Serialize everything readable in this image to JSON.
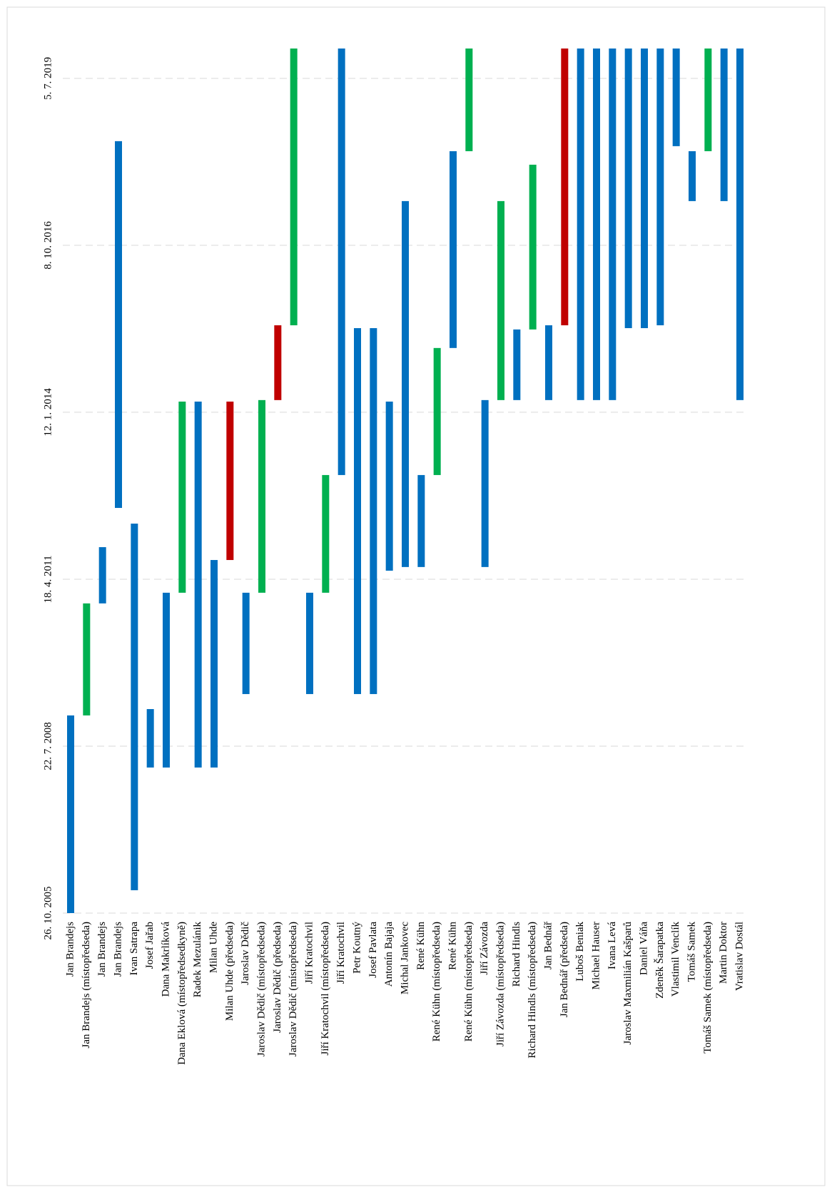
{
  "chart_data": {
    "type": "floating-bar",
    "categories": [
      "Jan Brandejs",
      "Jan Brandejs (místopředseda)",
      "Jan Brandejs",
      "Jan Brandejs",
      "Ivan Satrapa",
      "Josef Jařab",
      "Dana Makrlíková",
      "Dana Eklová (místopředsedkyně)",
      "Radek Mezulánik",
      "Milan Uhde",
      "Milan Uhde (předseda)",
      "Jaroslav Dědič",
      "Jaroslav Dědič (místopředseda)",
      "Jaroslav Dědič (předseda)",
      "Jaroslav Dědič (místopředseda)",
      "Jiří Kratochvil",
      "Jiří Kratochvil (místopředseda)",
      "Jiří Kratochvil",
      "Petr Koutný",
      "Josef Pavlata",
      "Antonín Bajaja",
      "Michal Jankovec",
      "René Kühn",
      "René Kühn (místopředseda)",
      "René Kühn",
      "René Kühn (místopředseda)",
      "Jiří Závozda",
      "Jiří Závozda (místopředseda)",
      "Richard Hindls",
      "Richard Hindls (místopředseda)",
      "Jan Bednář",
      "Jan Bednář (předseda)",
      "Luboš Beniak",
      "Michael Hauser",
      "Ivana Levá",
      "Jaroslav Maxmilián Kašparů",
      "Daniel Váňa",
      "Zdeněk Šarapatka",
      "Vlastimil Venclík",
      "Tomáš Samek",
      "Tomáš Samek (místopředseda)",
      "Martin Doktor",
      "Vratislav Dostál"
    ],
    "starts": [
      38651,
      39835,
      40506,
      41078,
      38788,
      39523,
      39523,
      40570,
      39523,
      39523,
      40766,
      39963,
      40570,
      41724,
      42172,
      39963,
      40570,
      41275,
      39963,
      39963,
      40702,
      40724,
      40724,
      41275,
      42036,
      43215,
      40724,
      41724,
      41724,
      42147,
      41724,
      42172,
      41724,
      41724,
      41724,
      42155,
      42155,
      42172,
      43245,
      42916,
      43215,
      42916,
      41724
    ],
    "ends": [
      39835,
      40506,
      40843,
      43275,
      40984,
      39873,
      40570,
      41715,
      41715,
      40766,
      41715,
      40570,
      41724,
      42172,
      43830,
      40570,
      41275,
      43830,
      42155,
      42155,
      41715,
      42916,
      41275,
      42036,
      43215,
      43830,
      41724,
      42916,
      42147,
      43134,
      42172,
      43830,
      43830,
      43830,
      43830,
      43830,
      43830,
      43830,
      43830,
      43215,
      43830,
      43830,
      43830
    ],
    "colors": [
      "#0070c0",
      "#00b050",
      "#0070c0",
      "#0070c0",
      "#0070c0",
      "#0070c0",
      "#0070c0",
      "#00b050",
      "#0070c0",
      "#0070c0",
      "#c00000",
      "#0070c0",
      "#00b050",
      "#c00000",
      "#00b050",
      "#0070c0",
      "#00b050",
      "#0070c0",
      "#0070c0",
      "#0070c0",
      "#0070c0",
      "#0070c0",
      "#0070c0",
      "#00b050",
      "#0070c0",
      "#00b050",
      "#0070c0",
      "#00b050",
      "#0070c0",
      "#00b050",
      "#0070c0",
      "#c00000",
      "#0070c0",
      "#0070c0",
      "#0070c0",
      "#0070c0",
      "#0070c0",
      "#0070c0",
      "#0070c0",
      "#0070c0",
      "#00b050",
      "#0070c0",
      "#0070c0"
    ],
    "ylim": [
      38651,
      43830
    ],
    "yticks": [
      {
        "value": 38651,
        "label": "26. 10. 2005"
      },
      {
        "value": 39651,
        "label": "22. 7. 2008"
      },
      {
        "value": 40651,
        "label": "18. 4. 2011"
      },
      {
        "value": 41651,
        "label": "12. 1. 2014"
      },
      {
        "value": 42651,
        "label": "8. 10. 2016"
      },
      {
        "value": 43651,
        "label": "5. 7. 2019"
      }
    ],
    "grid": true
  }
}
